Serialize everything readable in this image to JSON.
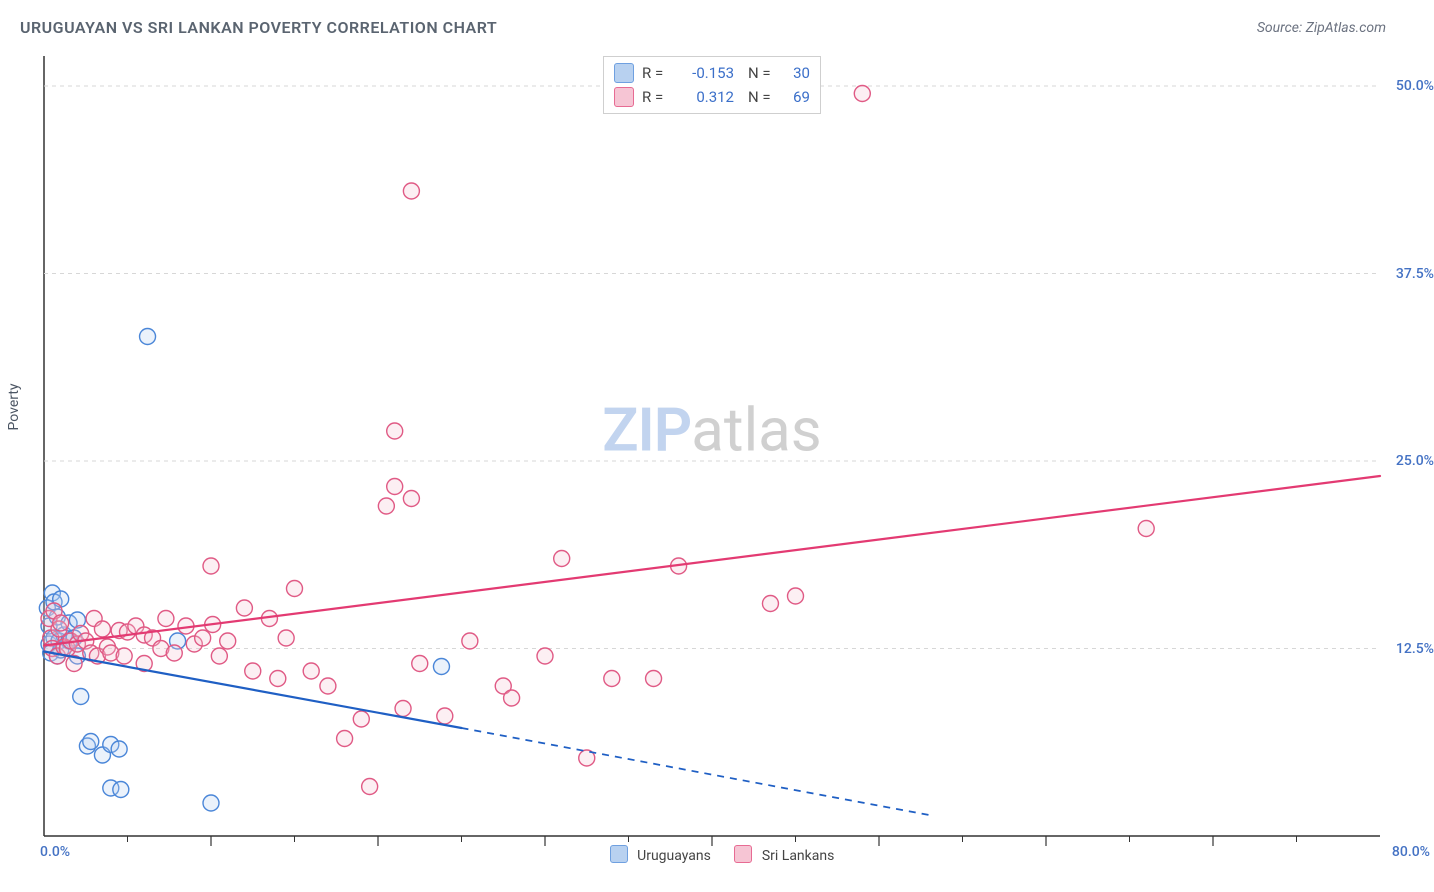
{
  "title": "URUGUAYAN VS SRI LANKAN POVERTY CORRELATION CHART",
  "source": "Source: ZipAtlas.com",
  "ylabel": "Poverty",
  "watermark": {
    "part1": "ZIP",
    "part2": "atlas"
  },
  "chart": {
    "type": "scatter",
    "background_color": "#ffffff",
    "axis_color": "#333333",
    "grid_color": "#d7d7d7",
    "tick_color": "#333333",
    "label_color": "#4472c4",
    "xlim": [
      0,
      80
    ],
    "ylim": [
      0,
      52
    ],
    "x_ticks_major": [
      10,
      20,
      30,
      40,
      50,
      60,
      70
    ],
    "x_ticks_minor_step": 5,
    "y_grid": [
      12.5,
      25.0,
      37.5,
      50.0
    ],
    "y_grid_labels": [
      "12.5%",
      "25.0%",
      "37.5%",
      "50.0%"
    ],
    "x_corner_left": "0.0%",
    "x_corner_right": "80.0%",
    "marker_radius": 8,
    "marker_stroke_width": 1.4,
    "marker_fill_opacity": 0.28,
    "series": [
      {
        "name": "Uruguayans",
        "swatch_fill": "#b8d1f0",
        "swatch_stroke": "#6fa0e0",
        "point_fill": "#b8d1f0",
        "point_stroke": "#4a86d8",
        "R": "-0.153",
        "N": "30",
        "trend": {
          "color": "#1f5fc4",
          "width": 2.2,
          "solid": {
            "x1": 0,
            "y1": 12.3,
            "x2": 25,
            "y2": 7.2
          },
          "dashed": {
            "x1": 25,
            "y1": 7.2,
            "x2": 53,
            "y2": 1.4
          }
        },
        "points": [
          [
            0.2,
            15.2
          ],
          [
            0.3,
            14.0
          ],
          [
            0.3,
            12.8
          ],
          [
            0.4,
            12.2
          ],
          [
            0.5,
            16.2
          ],
          [
            0.6,
            13.2
          ],
          [
            0.6,
            15.6
          ],
          [
            0.8,
            14.6
          ],
          [
            0.8,
            12.0
          ],
          [
            0.9,
            13.0
          ],
          [
            1.0,
            15.8
          ],
          [
            1.0,
            12.4
          ],
          [
            1.2,
            13.4
          ],
          [
            1.5,
            14.2
          ],
          [
            1.5,
            13.0
          ],
          [
            1.8,
            13.2
          ],
          [
            2.0,
            14.4
          ],
          [
            2.0,
            12.0
          ],
          [
            2.2,
            9.3
          ],
          [
            2.6,
            6.0
          ],
          [
            2.8,
            6.3
          ],
          [
            3.5,
            5.4
          ],
          [
            4.0,
            6.1
          ],
          [
            4.5,
            5.8
          ],
          [
            4.0,
            3.2
          ],
          [
            4.6,
            3.1
          ],
          [
            10.0,
            2.2
          ],
          [
            6.2,
            33.3
          ],
          [
            8.0,
            13.0
          ],
          [
            23.8,
            11.3
          ]
        ]
      },
      {
        "name": "Sri Lankans",
        "swatch_fill": "#f6c5d4",
        "swatch_stroke": "#e76b93",
        "point_fill": "#f6c5d4",
        "point_stroke": "#e05a85",
        "R": "0.312",
        "N": "69",
        "trend": {
          "color": "#e33a72",
          "width": 2.2,
          "solid": {
            "x1": 0,
            "y1": 12.7,
            "x2": 80,
            "y2": 24.0
          }
        },
        "points": [
          [
            0.3,
            14.5
          ],
          [
            0.4,
            13.2
          ],
          [
            0.5,
            12.5
          ],
          [
            0.6,
            15.0
          ],
          [
            0.8,
            12.0
          ],
          [
            0.9,
            13.8
          ],
          [
            1.0,
            14.2
          ],
          [
            1.2,
            12.6
          ],
          [
            1.4,
            12.5
          ],
          [
            1.6,
            13.0
          ],
          [
            1.8,
            11.5
          ],
          [
            2.0,
            12.8
          ],
          [
            2.2,
            13.5
          ],
          [
            2.5,
            13.0
          ],
          [
            2.8,
            12.2
          ],
          [
            3.0,
            14.5
          ],
          [
            3.2,
            12.0
          ],
          [
            3.5,
            13.8
          ],
          [
            3.8,
            12.6
          ],
          [
            4.0,
            12.2
          ],
          [
            4.5,
            13.7
          ],
          [
            4.8,
            12.0
          ],
          [
            5.0,
            13.6
          ],
          [
            5.5,
            14.0
          ],
          [
            6.0,
            13.4
          ],
          [
            6.0,
            11.5
          ],
          [
            6.5,
            13.2
          ],
          [
            7.0,
            12.5
          ],
          [
            7.3,
            14.5
          ],
          [
            7.8,
            12.2
          ],
          [
            8.5,
            14.0
          ],
          [
            9.0,
            12.8
          ],
          [
            9.5,
            13.2
          ],
          [
            10.0,
            18.0
          ],
          [
            10.1,
            14.1
          ],
          [
            10.5,
            12.0
          ],
          [
            11.0,
            13.0
          ],
          [
            12.0,
            15.2
          ],
          [
            12.5,
            11.0
          ],
          [
            13.5,
            14.5
          ],
          [
            14.0,
            10.5
          ],
          [
            14.5,
            13.2
          ],
          [
            15.0,
            16.5
          ],
          [
            16.0,
            11.0
          ],
          [
            17.0,
            10.0
          ],
          [
            18.0,
            6.5
          ],
          [
            19.0,
            7.8
          ],
          [
            19.5,
            3.3
          ],
          [
            20.5,
            22.0
          ],
          [
            21.0,
            27.0
          ],
          [
            21.0,
            23.3
          ],
          [
            21.5,
            8.5
          ],
          [
            22.0,
            22.5
          ],
          [
            22.0,
            43.0
          ],
          [
            22.5,
            11.5
          ],
          [
            24.0,
            8.0
          ],
          [
            25.5,
            13.0
          ],
          [
            27.5,
            10.0
          ],
          [
            28.0,
            9.2
          ],
          [
            30.0,
            12.0
          ],
          [
            31.0,
            18.5
          ],
          [
            32.5,
            5.2
          ],
          [
            34.0,
            10.5
          ],
          [
            36.5,
            10.5
          ],
          [
            38.0,
            18.0
          ],
          [
            43.5,
            15.5
          ],
          [
            45.0,
            16.0
          ],
          [
            49.0,
            49.5
          ],
          [
            66.0,
            20.5
          ]
        ]
      }
    ],
    "bottom_legend": [
      {
        "label": "Uruguayans",
        "fill": "#b8d1f0",
        "stroke": "#6fa0e0"
      },
      {
        "label": "Sri Lankans",
        "fill": "#f6c5d4",
        "stroke": "#e76b93"
      }
    ]
  }
}
